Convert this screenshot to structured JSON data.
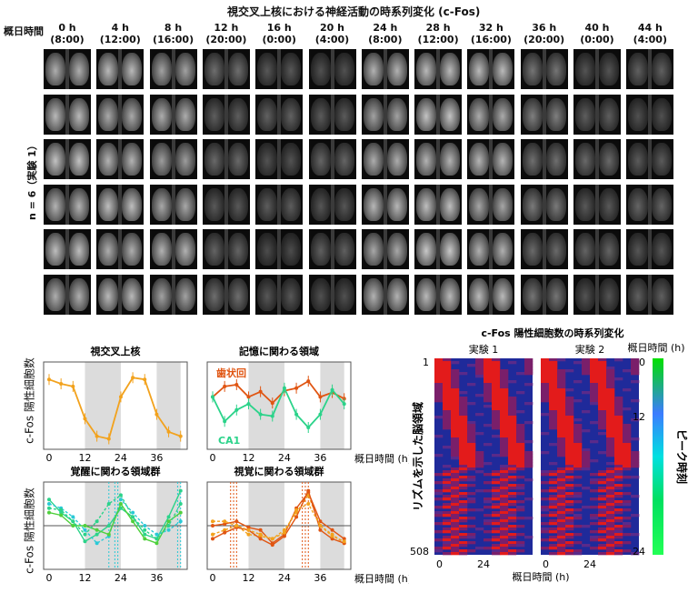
{
  "figure_title": "視交叉上核における神経活動の時系列変化 (c-Fos)",
  "grid": {
    "corner_label": "概日時間",
    "row_label": "n = 6（実験 1）",
    "columns": [
      {
        "h": "0 h",
        "clock": "(8:00)"
      },
      {
        "h": "4 h",
        "clock": "(12:00)"
      },
      {
        "h": "8 h",
        "clock": "(16:00)"
      },
      {
        "h": "12 h",
        "clock": "(20:00)"
      },
      {
        "h": "16 h",
        "clock": "(0:00)"
      },
      {
        "h": "20 h",
        "clock": "(4:00)"
      },
      {
        "h": "24 h",
        "clock": "(8:00)"
      },
      {
        "h": "28 h",
        "clock": "(12:00)"
      },
      {
        "h": "32 h",
        "clock": "(16:00)"
      },
      {
        "h": "36 h",
        "clock": "(20:00)"
      },
      {
        "h": "40 h",
        "clock": "(0:00)"
      },
      {
        "h": "44 h",
        "clock": "(4:00)"
      }
    ],
    "brightness": [
      0.85,
      0.82,
      0.75,
      0.35,
      0.28,
      0.3,
      0.78,
      0.88,
      0.8,
      0.45,
      0.32,
      0.3
    ]
  },
  "line_panels": {
    "ylabel_top": "c-Fos 陽性細胞数",
    "ylabel_bottom": "c-Fos 陽性細胞数",
    "xlabel": "概日時間 (h)",
    "ticks": [
      "0",
      "12",
      "24",
      "36"
    ],
    "colors": {
      "orange": "#f2a21d",
      "red": "#e05512",
      "green": "#2bd38a",
      "cyan": "#29c9d6",
      "lime": "#4fd03c"
    }
  },
  "chart_data": [
    {
      "type": "line",
      "title": "視交叉上核",
      "x": [
        0,
        4,
        8,
        12,
        16,
        20,
        24,
        28,
        32,
        36,
        40,
        44
      ],
      "series": [
        {
          "values": [
            8.0,
            7.5,
            7.2,
            3.5,
            1.5,
            1.2,
            6.0,
            8.2,
            8.0,
            4.0,
            2.0,
            1.5
          ]
        }
      ],
      "ylim": [
        0,
        10
      ],
      "shaded": [
        [
          12,
          24
        ],
        [
          36,
          44
        ]
      ]
    },
    {
      "type": "line",
      "title": "記憶に関わる領域",
      "x": [
        0,
        4,
        8,
        12,
        16,
        20,
        24,
        28,
        32,
        36,
        40,
        44
      ],
      "series": [
        {
          "name": "歯状回",
          "values": [
            6.0,
            7.2,
            7.4,
            6.0,
            6.6,
            5.3,
            6.7,
            7.0,
            7.8,
            6.0,
            6.5,
            5.8
          ]
        },
        {
          "name": "CA1",
          "values": [
            6.0,
            3.2,
            4.5,
            5.2,
            4.0,
            3.8,
            7.0,
            4.0,
            2.5,
            4.0,
            6.8,
            5.2
          ]
        }
      ],
      "ylim": [
        0,
        10
      ],
      "shaded": [
        [
          12,
          24
        ],
        [
          36,
          44
        ]
      ]
    },
    {
      "type": "line",
      "title": "覚醒に関わる領域群",
      "x": [
        0,
        4,
        8,
        12,
        16,
        20,
        24,
        28,
        32,
        36,
        40,
        44
      ],
      "series": [
        {
          "values": [
            8.0,
            6.5,
            5.5,
            3.2,
            4.0,
            5.0,
            7.0,
            6.0,
            4.0,
            3.5,
            6.0,
            9.0
          ]
        },
        {
          "values": [
            7.5,
            7.0,
            6.0,
            4.5,
            3.0,
            3.8,
            8.0,
            6.5,
            5.0,
            4.0,
            4.5,
            5.5
          ]
        },
        {
          "values": [
            6.5,
            6.2,
            5.0,
            5.0,
            4.5,
            4.0,
            7.5,
            5.5,
            3.5,
            3.0,
            5.5,
            6.5
          ]
        },
        {
          "values": [
            7.0,
            6.8,
            5.5,
            4.0,
            5.5,
            7.5,
            8.5,
            6.0,
            4.5,
            3.5,
            5.0,
            7.5
          ]
        }
      ],
      "ylim": [
        0,
        10
      ],
      "shaded": [
        [
          12,
          24
        ],
        [
          36,
          44
        ]
      ],
      "peak_lines": [
        20,
        22,
        23,
        43,
        44
      ]
    },
    {
      "type": "line",
      "title": "視覚に関わる領域群",
      "x": [
        0,
        4,
        8,
        12,
        16,
        20,
        24,
        28,
        32,
        36,
        40,
        44
      ],
      "series": [
        {
          "values": [
            5.0,
            5.2,
            5.5,
            4.8,
            4.5,
            3.0,
            4.0,
            7.0,
            8.8,
            5.5,
            4.5,
            3.5
          ]
        },
        {
          "values": [
            4.0,
            4.5,
            5.0,
            4.0,
            3.8,
            3.5,
            4.5,
            6.5,
            8.5,
            5.0,
            4.0,
            3.0
          ]
        },
        {
          "values": [
            3.5,
            4.2,
            4.8,
            4.5,
            3.5,
            2.8,
            3.8,
            6.0,
            9.0,
            4.5,
            3.5,
            3.0
          ]
        },
        {
          "values": [
            5.5,
            5.5,
            5.0,
            4.5,
            4.0,
            3.5,
            4.2,
            6.8,
            7.5,
            5.0,
            3.8,
            3.2
          ]
        }
      ],
      "ylim": [
        0,
        10
      ],
      "shaded": [
        [
          12,
          24
        ],
        [
          36,
          44
        ]
      ],
      "peak_lines": [
        6,
        7,
        8,
        30,
        31,
        32
      ]
    },
    {
      "type": "heatmap",
      "title": "c-Fos 陽性細胞数の時系列変化",
      "panels": [
        "実験 1",
        "実験 2"
      ],
      "ylabel": "リズムを示した脳領域",
      "xlabel": "概日時間 (h)",
      "y_ticks": [
        "1",
        "508"
      ],
      "x_ticks": [
        "0",
        "24"
      ],
      "colorbar": {
        "title": "概日時間 (h)",
        "label": "ピーク時刻",
        "ticks": [
          "0",
          "12",
          "24"
        ]
      }
    }
  ]
}
